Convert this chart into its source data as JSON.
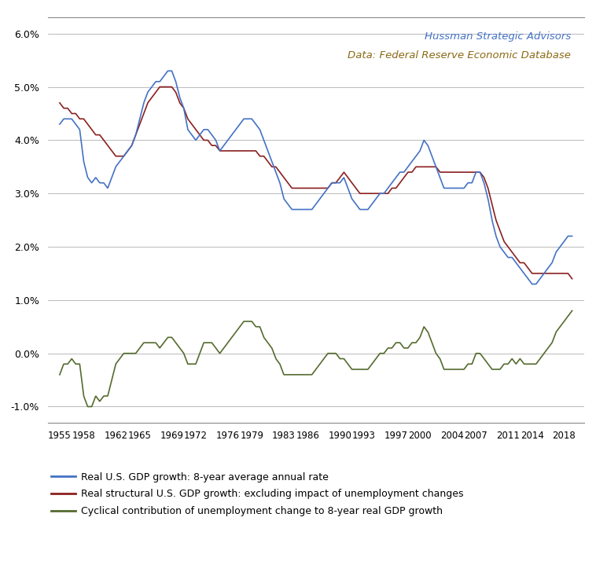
{
  "title_line1": "Hussman Strategic Advisors",
  "title_line2": "Data: Federal Reserve Economic Database",
  "annotation_color1": "#4472C4",
  "annotation_color2": "#8B6914",
  "ylim": [
    -0.013,
    0.063
  ],
  "yticks": [
    -0.01,
    0.0,
    0.01,
    0.02,
    0.03,
    0.04,
    0.05,
    0.06
  ],
  "xlabel_years": [
    1955,
    1958,
    1962,
    1965,
    1969,
    1972,
    1976,
    1979,
    1983,
    1986,
    1990,
    1993,
    1997,
    2000,
    2004,
    2007,
    2011,
    2014,
    2018
  ],
  "xlim": [
    1953.5,
    2020.5
  ],
  "legend_labels": [
    "Real U.S. GDP growth: 8-year average annual rate",
    "Real structural U.S. GDP growth: excluding impact of unemployment changes",
    "Cyclical contribution of unemployment change to 8-year real GDP growth"
  ],
  "line_colors": [
    "#4472C4",
    "#8B2020",
    "#556B2F"
  ],
  "background_color": "#FFFFFF",
  "grid_color": "#B0B0B0"
}
